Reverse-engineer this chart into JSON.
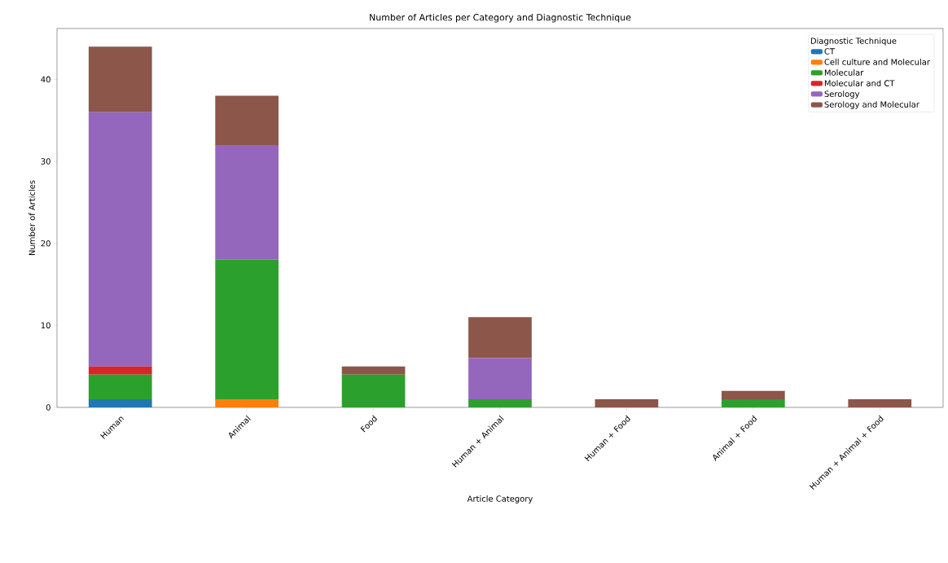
{
  "chart_data": {
    "type": "bar",
    "title": "Number of Articles per Category and Diagnostic Technique",
    "xlabel": "Article Category",
    "ylabel": "Number of Articles",
    "legend_title": "Diagnostic Technique",
    "categories": [
      "Human",
      "Animal",
      "Food",
      "Human + Animal",
      "Human + Food",
      "Animal + Food",
      "Human + Animal + Food"
    ],
    "stacked": true,
    "legend": "top right",
    "ylim": [
      0,
      46.2
    ],
    "yticks": [
      0,
      10,
      20,
      30,
      40
    ],
    "series": [
      {
        "name": "CT",
        "color": "#1f77b4",
        "values": [
          1,
          0,
          0,
          0,
          0,
          0,
          0
        ]
      },
      {
        "name": "Cell culture and Molecular",
        "color": "#ff7f0e",
        "values": [
          0,
          1,
          0,
          0,
          0,
          0,
          0
        ]
      },
      {
        "name": "Molecular",
        "color": "#2ca02c",
        "values": [
          3,
          17,
          4,
          1,
          0,
          1,
          0
        ]
      },
      {
        "name": "Molecular and CT",
        "color": "#d62728",
        "values": [
          1,
          0,
          0,
          0,
          0,
          0,
          0
        ]
      },
      {
        "name": "Serology",
        "color": "#9467bd",
        "values": [
          31,
          14,
          0,
          5,
          0,
          0,
          0
        ]
      },
      {
        "name": "Serology and Molecular",
        "color": "#8c564b",
        "values": [
          8,
          6,
          1,
          5,
          1,
          1,
          1
        ]
      }
    ]
  }
}
